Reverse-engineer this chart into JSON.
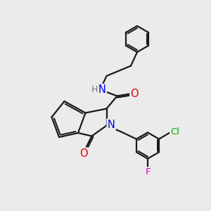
{
  "bg_color": "#ebebeb",
  "bond_color": "#1a1a1a",
  "bond_width": 1.6,
  "atom_colors": {
    "N": "#0000ee",
    "O": "#dd0000",
    "Cl": "#00aa00",
    "F": "#cc00cc",
    "H": "#777777"
  },
  "font_size": 9.5
}
